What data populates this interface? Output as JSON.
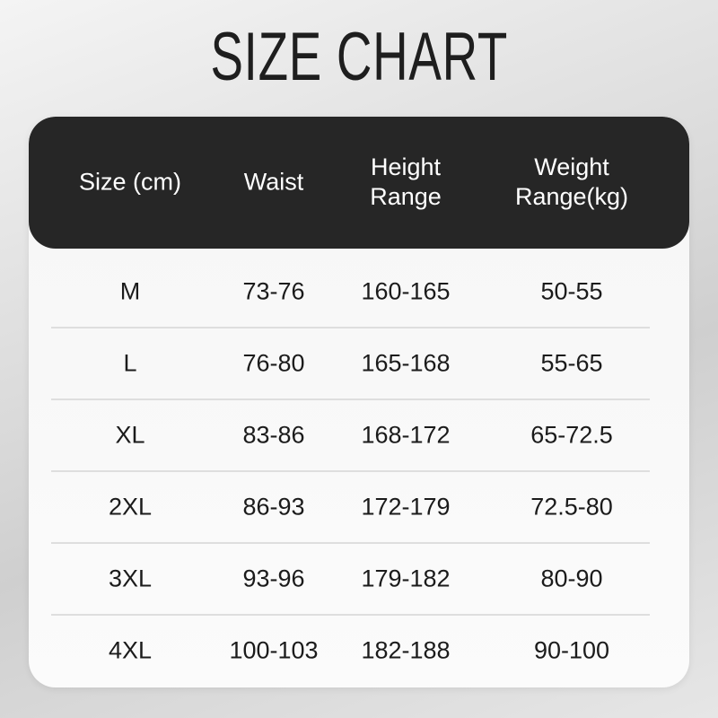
{
  "title": "SIZE CHART",
  "table": {
    "headers": [
      "Size (cm)",
      "Waist",
      "Height\nRange",
      "Weight\nRange(kg)"
    ],
    "header_lines": [
      [
        "Size (cm)"
      ],
      [
        "Waist"
      ],
      [
        "Height",
        "Range"
      ],
      [
        "Weight",
        "Range(kg)"
      ]
    ],
    "rows": [
      [
        "M",
        "73-76",
        "160-165",
        "50-55"
      ],
      [
        "L",
        "76-80",
        "165-168",
        "55-65"
      ],
      [
        "XL",
        "83-86",
        "168-172",
        "65-72.5"
      ],
      [
        "2XL",
        "86-93",
        "172-179",
        "72.5-80"
      ],
      [
        "3XL",
        "93-96",
        "179-182",
        "80-90"
      ],
      [
        "4XL",
        "100-103",
        "182-188",
        "90-100"
      ]
    ]
  },
  "colors": {
    "header_bg": "#262626",
    "header_text": "#ffffff",
    "text": "#1b1b1b"
  }
}
